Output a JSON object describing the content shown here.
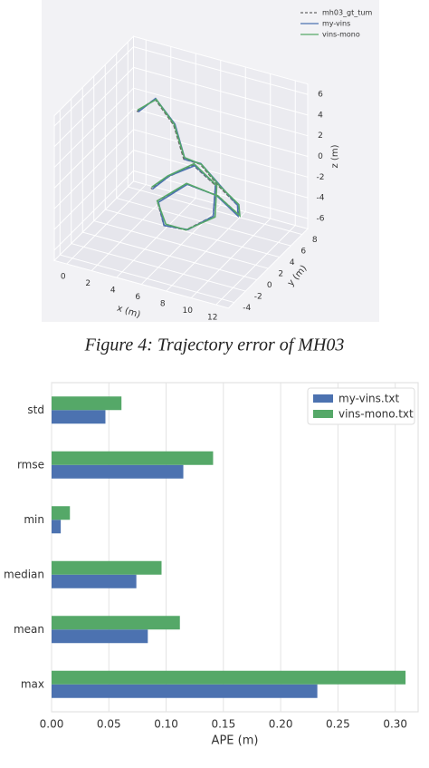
{
  "chart_data": [
    {
      "type": "line3d",
      "xlabel": "x (m)",
      "ylabel": "y (m)",
      "zlabel": "z (m)",
      "xlim": [
        -1,
        13
      ],
      "ylim": [
        -5,
        9
      ],
      "zlim": [
        -7,
        7
      ],
      "xticks": [
        0,
        2,
        4,
        6,
        8,
        10,
        12
      ],
      "yticks": [
        -4,
        -2,
        0,
        2,
        4,
        6,
        8
      ],
      "zticks": [
        -6,
        -4,
        -2,
        0,
        2,
        4,
        6
      ],
      "legend": "upper right",
      "series": [
        {
          "name": "mh03_gt_tum",
          "color": "#666666",
          "dash": true,
          "x": [
            2,
            3,
            4.5,
            6,
            8,
            10,
            11,
            10.5,
            8.5,
            6.5,
            5,
            6,
            8,
            9.5,
            9,
            7,
            5.5,
            4.5
          ],
          "y": [
            3,
            4,
            4,
            2.5,
            1,
            0,
            1,
            2.5,
            3,
            2,
            0,
            -1,
            -1.5,
            0,
            1.5,
            2,
            1,
            0
          ],
          "z": [
            4,
            5,
            3,
            1,
            2,
            1,
            -1,
            -3,
            -2,
            -1,
            -2,
            -3.5,
            -3,
            -2,
            0,
            1,
            0,
            -1
          ]
        },
        {
          "name": "my-vins",
          "color": "#4c72b0",
          "dash": false,
          "x": [
            2.1,
            3,
            4.6,
            6.1,
            8,
            10.1,
            11,
            10.4,
            8.4,
            6.5,
            5.1,
            6,
            8.1,
            9.5,
            9,
            7.1,
            5.5,
            4.6
          ],
          "y": [
            3,
            4.1,
            4,
            2.5,
            1.1,
            0,
            1,
            2.4,
            3,
            2,
            0,
            -1,
            -1.4,
            0,
            1.5,
            2,
            1.1,
            0
          ],
          "z": [
            4,
            5,
            3.1,
            1,
            2,
            1.1,
            -1,
            -3,
            -2,
            -1,
            -2.1,
            -3.5,
            -3,
            -2,
            0.1,
            1,
            0,
            -1
          ]
        },
        {
          "name": "vins-mono",
          "color": "#55a868",
          "dash": false,
          "x": [
            2,
            3.1,
            4.5,
            6,
            8.1,
            10,
            11.1,
            10.5,
            8.5,
            6.4,
            5,
            6.1,
            8,
            9.6,
            9.1,
            7,
            5.4,
            4.5
          ],
          "y": [
            3.1,
            4,
            4.1,
            2.6,
            1,
            0.1,
            1,
            2.5,
            3.1,
            2.1,
            0,
            -0.9,
            -1.5,
            0.1,
            1.5,
            2.1,
            1,
            0.1
          ],
          "z": [
            4.1,
            5,
            3,
            1.1,
            2,
            1,
            -0.9,
            -3,
            -2.1,
            -1,
            -2,
            -3.4,
            -3,
            -2.1,
            0,
            1.1,
            0,
            -0.9
          ]
        }
      ]
    },
    {
      "type": "barh",
      "xlabel": "APE (m)",
      "categories": [
        "max",
        "mean",
        "median",
        "min",
        "rmse",
        "std"
      ],
      "xlim": [
        0,
        0.32
      ],
      "xticks": [
        {
          "value": 0,
          "label": "0.00"
        },
        {
          "value": 0.05,
          "label": "0.05"
        },
        {
          "value": 0.1,
          "label": "0.10"
        },
        {
          "value": 0.15,
          "label": "0.15"
        },
        {
          "value": 0.2,
          "label": "0.20"
        },
        {
          "value": 0.25,
          "label": "0.25"
        },
        {
          "value": 0.3,
          "label": "0.30"
        }
      ],
      "grid": true,
      "legend": "upper right",
      "series": [
        {
          "name": "my-vins.txt",
          "color": "#4c72b0",
          "values": [
            0.232,
            0.084,
            0.074,
            0.008,
            0.115,
            0.047
          ]
        },
        {
          "name": "vins-mono.txt",
          "color": "#55a868",
          "values": [
            0.309,
            0.112,
            0.096,
            0.016,
            0.141,
            0.061
          ]
        }
      ]
    }
  ],
  "caption": "Figure 4: Trajectory error of MH03"
}
